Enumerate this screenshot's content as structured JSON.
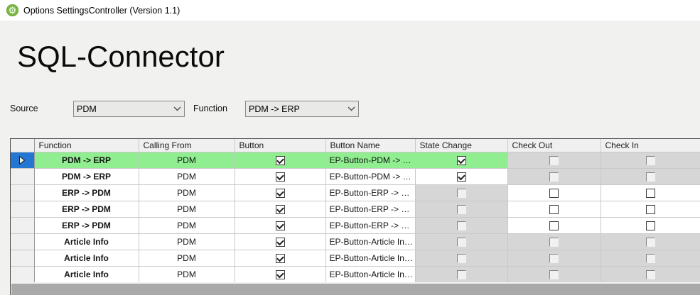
{
  "window": {
    "title": "Options SettingsController (Version 1.1)",
    "icon": "gear"
  },
  "icons": {
    "gear": "⚙"
  },
  "page": {
    "heading": "SQL-Connector"
  },
  "filters": {
    "source": {
      "label": "Source",
      "value": "PDM"
    },
    "function": {
      "label": "Function",
      "value": "PDM -> ERP"
    }
  },
  "grid": {
    "columns": [
      "Function",
      "Calling From",
      "Button",
      "Button Name",
      "State Change",
      "Check Out",
      "Check In"
    ],
    "rows": [
      {
        "selected": true,
        "function": "PDM -> ERP",
        "calling_from": "PDM",
        "button": "checked",
        "button_name": "EP-Button-PDM -> ER...",
        "state_change": "checked",
        "check_out": "disabled",
        "check_in": "disabled"
      },
      {
        "selected": false,
        "function": "PDM -> ERP",
        "calling_from": "PDM",
        "button": "checked",
        "button_name": "EP-Button-PDM -> ER...",
        "state_change": "checked",
        "check_out": "disabled",
        "check_in": "disabled"
      },
      {
        "selected": false,
        "function": "ERP -> PDM",
        "calling_from": "PDM",
        "button": "checked",
        "button_name": "EP-Button-ERP -> PD...",
        "state_change": "disabled",
        "check_out": "unchecked",
        "check_in": "unchecked"
      },
      {
        "selected": false,
        "function": "ERP -> PDM",
        "calling_from": "PDM",
        "button": "checked",
        "button_name": "EP-Button-ERP -> PD...",
        "state_change": "disabled",
        "check_out": "unchecked",
        "check_in": "unchecked"
      },
      {
        "selected": false,
        "function": "ERP -> PDM",
        "calling_from": "PDM",
        "button": "checked",
        "button_name": "EP-Button-ERP -> PD...",
        "state_change": "disabled",
        "check_out": "unchecked",
        "check_in": "unchecked"
      },
      {
        "selected": false,
        "function": "Article Info",
        "calling_from": "PDM",
        "button": "checked",
        "button_name": "EP-Button-Article Info-...",
        "state_change": "disabled",
        "check_out": "disabled",
        "check_in": "disabled"
      },
      {
        "selected": false,
        "function": "Article Info",
        "calling_from": "PDM",
        "button": "checked",
        "button_name": "EP-Button-Article Info-...",
        "state_change": "disabled",
        "check_out": "disabled",
        "check_in": "disabled"
      },
      {
        "selected": false,
        "function": "Article Info",
        "calling_from": "PDM",
        "button": "checked",
        "button_name": "EP-Button-Article Info-...",
        "state_change": "disabled",
        "check_out": "disabled",
        "check_in": "disabled"
      }
    ]
  },
  "colors": {
    "selected_row_green": "#90ee90",
    "row_selector_blue": "#2376d2",
    "disabled_cell_gray": "#d6d6d6",
    "app_icon_green": "#7cb942"
  }
}
